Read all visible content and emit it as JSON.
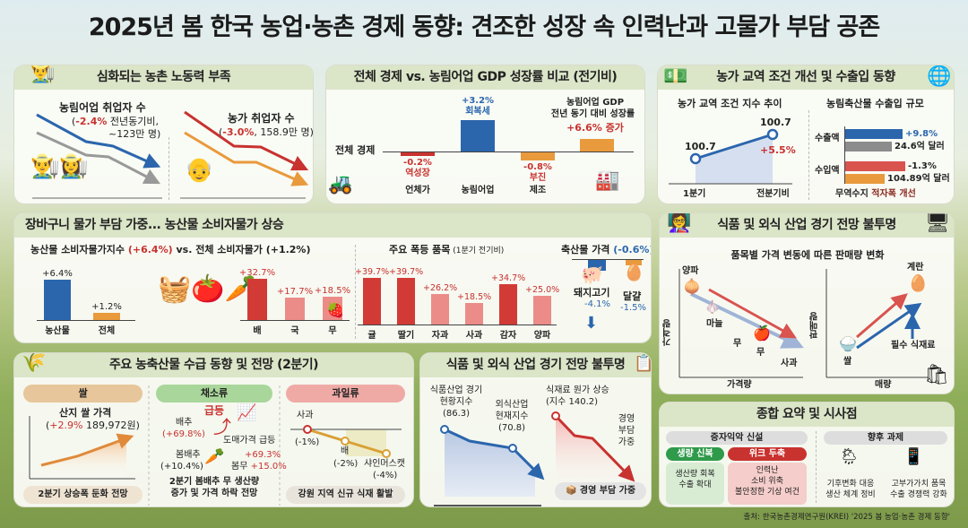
{
  "title": "2025년 봄 한국 농업·농촌 경제 동향: 견조한 성장 속 인력난과 고물가 부담 공존",
  "labor": {
    "header": "심화되는 농촌 노동력 부족",
    "left_title": "농림어업 취업자 수",
    "left_change": "-2.4%",
    "left_rest": " 전년동기비,",
    "left_count": "~123만 명)",
    "right_title": "농가 취업자 수",
    "right_change": "-3.0%",
    "right_rest": ", 158.9만 명)"
  },
  "gdp": {
    "header": "전체 경제 vs. 농림어업 GDP 성장률 비교 (전기비)",
    "axis_label": "전체 경제",
    "bars": [
      {
        "value": -0.2,
        "label": "-0.2%",
        "note": "역성장",
        "cat": "언체가",
        "color": "#c8322f"
      },
      {
        "value": 3.2,
        "label": "+3.2%",
        "note": "회복세",
        "cat": "농림어업",
        "color": "#2b66ad"
      },
      {
        "value": -0.8,
        "label": "-0.8%",
        "note": "부진",
        "cat": "제조",
        "color": "#e99a3c"
      },
      {
        "value": 1.3,
        "label": "",
        "note": "",
        "cat": "",
        "color": "#e99a3c"
      }
    ],
    "yoy_title1": "농림어업 GDP",
    "yoy_title2": "전년 동기 대비 성장률",
    "yoy_value": "+6.6% 증가"
  },
  "trade": {
    "header": "농가 교역 조건 개선 및 수출입 동향",
    "index_title": "농가 교역 조건 지수 추이",
    "p1": "100.7",
    "p2": "100.7",
    "change": "+5.5%",
    "x1": "1분기",
    "x2": "전분기비",
    "scale_title": "농림축산물 수출입 규모",
    "export_label": "수출액",
    "export_change": "+9.8%",
    "export_value": "24.6억 달러",
    "import_label": "수입액",
    "import_change": "-1.3%",
    "import_value": "104.89억 달러",
    "balance": "무역수지 ",
    "balance_hl": "적자폭 개선"
  },
  "cpi": {
    "header": "장바구니 물가 부담 가중... 농산물 소비자물가 상승",
    "sub_a": "농산물 소비자물가지수 ",
    "sub_b": "(+6.4%)",
    "sub_c": " vs.  전체 소비자물가 (+1.2%)",
    "main": [
      {
        "label": "+6.4%",
        "value": 6.4,
        "cat": "농산물",
        "color": "#2b66ad"
      },
      {
        "label": "+1.2%",
        "value": 1.2,
        "cat": "전체",
        "color": "#e99a3c"
      }
    ],
    "small": [
      {
        "label": "+32.7%",
        "value": 32.7,
        "cat": "배",
        "color": "#d23b35"
      },
      {
        "label": "+17.7%",
        "value": 17.7,
        "cat": "국",
        "color": "#ec8c88"
      },
      {
        "label": "+18.5%",
        "value": 18.5,
        "cat": "무",
        "color": "#ec8c88"
      }
    ],
    "items_title": "주요 폭등 품목",
    "items_sub": " (1분기 전기비)",
    "items": [
      {
        "label": "+39.7%",
        "value": 39.7,
        "cat": "귤",
        "color": "#d23b35"
      },
      {
        "label": "+39.7%",
        "value": 39.7,
        "cat": "딸기",
        "color": "#d23b35"
      },
      {
        "label": "+26.2%",
        "value": 26.2,
        "cat": "자과",
        "color": "#ec8c88"
      },
      {
        "label": "+18.5%",
        "value": 18.5,
        "cat": "사과",
        "color": "#ec8c88"
      },
      {
        "label": "+34.7%",
        "value": 34.7,
        "cat": "감자",
        "color": "#d23b35"
      },
      {
        "label": "+25.0%",
        "value": 25.0,
        "cat": "양파",
        "color": "#ec8c88"
      }
    ],
    "livestock_title": "축산물 가격 ",
    "livestock_change": "(-0.6%)",
    "pork": "돼지고기",
    "pork_change": "-4.1%",
    "egg": "달걀",
    "egg_change": "-1.5%"
  },
  "foodsales": {
    "header": "식품 및 외식 산업 경기 전망 불투명",
    "sub": "품목별 가격 변동에 따른 판매량 변화",
    "onion": "양파",
    "garlic": "마늘",
    "radish": "무",
    "radish2": "무",
    "apple": "사과",
    "yl": "가격량",
    "xl": "가격량",
    "egg": "계란",
    "rice": "쌀",
    "essential": "필수 식재료",
    "yl2": "판매량",
    "xl2": "매량"
  },
  "supply": {
    "header": "주요 농축산물 수급 동향 및 전망 (2분기)",
    "rice_tab": "쌀",
    "veg_tab": "채소류",
    "fruit_tab": "과일류",
    "rice_title": "산지 쌀 가격",
    "rice_change": "+2.9%",
    "rice_value": " 189,972원)",
    "rice_note": "2분기 상승폭 둔화 전망",
    "surge": "급등",
    "cabbage": "배추",
    "cabbage_change": "(+69.8%)",
    "wholesale": "도매가격 급등",
    "spring_cabbage": "봄배추",
    "spring_cabbage_change": "(+10.4%)",
    "v1": "+69.3%",
    "spring_radish": "봄무 ",
    "v2": "+15.0%",
    "veg_note1": "2분기 봄배추 무 생산량",
    "veg_note2": "증가 및 가격 하락 전망",
    "fruits": [
      {
        "name": "사과",
        "change": "(-1%)",
        "value": -1
      },
      {
        "name": "배",
        "change": "(-2%)",
        "value": -2
      },
      {
        "name": "샤인머스캣",
        "change": "(-4%)",
        "value": -4
      }
    ],
    "fruit_note": "강원 지역 신규 식재 활발"
  },
  "outlook": {
    "header": "식품 및 외식 산업 경기 전망 불투명",
    "food1": "식품산업 경기",
    "food2": "현황지수",
    "food_val": "(86.3)",
    "out1": "외식산업",
    "out2": "현재지수",
    "out_val": "(70.8)",
    "cost1": "식재료 원가 상승",
    "cost2": "(지수 140.2)",
    "burden1": "경영",
    "burden2": "부담",
    "burden3": "가중",
    "badge": "경영 부담 가중"
  },
  "summary": {
    "header": "종합 요약 및 시사점",
    "left_pill": "증자익악 신설",
    "green": "생량 신복",
    "red": "위크 두축",
    "green_body1": "생산량 회복",
    "green_body2": "수출 확대",
    "red_body1": "인력난",
    "red_body2": "소비 위축",
    "red_body3": "불안정한 기상 여건",
    "right_pill": "향후 과제",
    "task1a": "기후변화 대응",
    "task1b": "생산 체계 정비",
    "task2a": "고부가가치 품목",
    "task2b": "수출 경쟁력 강화"
  },
  "source": "출처: 한국농촌경제연구원(KREI) '2025 봄 농업·농촌 경제 동향'"
}
